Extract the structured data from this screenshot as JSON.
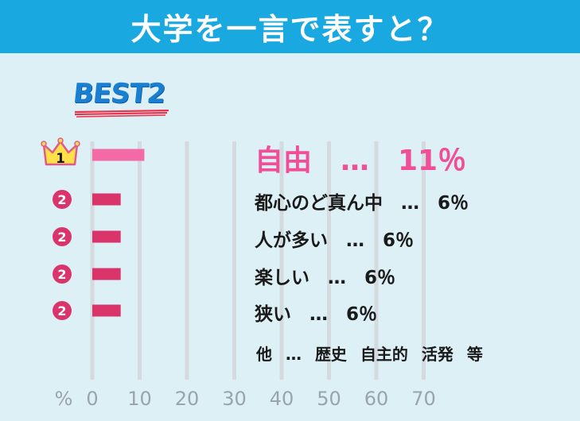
{
  "header": {
    "title": "大学を一言で表すと？"
  },
  "best_label": "BEST2",
  "colors": {
    "header_bg": "#1aa8e0",
    "background": "#dcf0f5",
    "bar_first": "#f46aa7",
    "bar_rest": "#d9356a",
    "label_first": "#f04e96",
    "grid": "#d3dbe0"
  },
  "icons": {
    "first": "crown-icon",
    "rest": "rank-circle-icon"
  },
  "chart_data": {
    "type": "bar",
    "orientation": "horizontal",
    "categories": [
      "自由",
      "都心のど真ん中",
      "人が多い",
      "楽しい",
      "狭い"
    ],
    "values": [
      11,
      6,
      6,
      6,
      6
    ],
    "ranks": [
      "1",
      "2",
      "2",
      "2",
      "2"
    ],
    "display_labels": [
      "自由　…　11％",
      "都心のど真ん中　…　6％",
      "人が多い　…　6％",
      "楽しい　…　6％",
      "狭い　…　6％"
    ],
    "x_unit_label": "%",
    "x_ticks": [
      0,
      10,
      20,
      30,
      40,
      50,
      60,
      70
    ],
    "xlim": [
      0,
      70
    ],
    "grid": true,
    "other": {
      "label": "他",
      "separator": "…",
      "items": [
        "歴史",
        "自主的",
        "活発",
        "等"
      ]
    }
  }
}
